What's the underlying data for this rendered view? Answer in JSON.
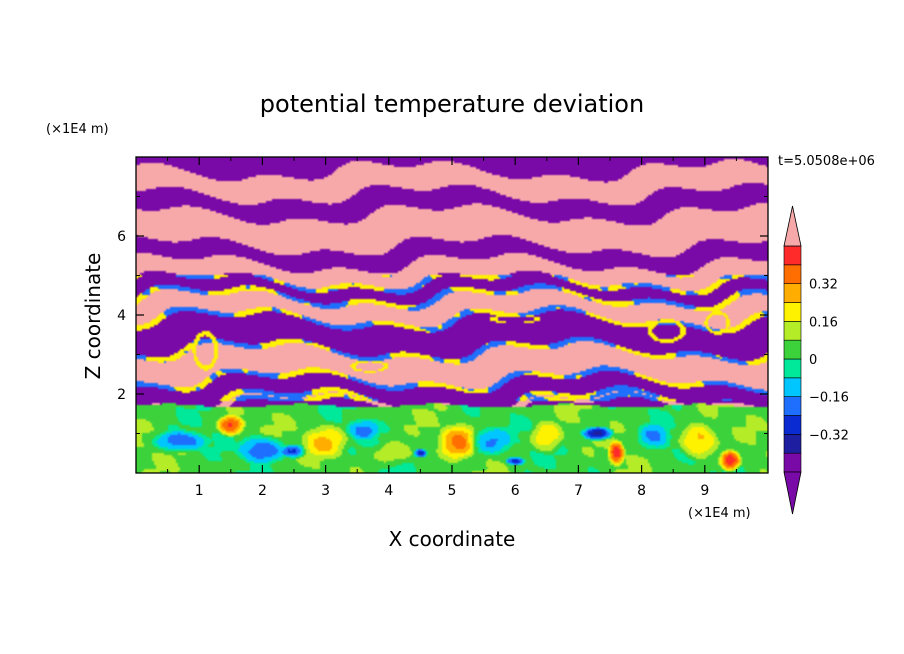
{
  "chart_data": {
    "type": "heatmap",
    "title": "potential temperature deviation",
    "xlabel": "X coordinate",
    "ylabel": "Z coordinate",
    "x_unit": "(×1E4 m)",
    "y_unit": "(×1E4 m)",
    "time_label": "t=5.0508e+06",
    "xlim": [
      0,
      10
    ],
    "ylim": [
      0,
      8
    ],
    "x_ticks": [
      {
        "value": 1,
        "label": "1"
      },
      {
        "value": 2,
        "label": "2"
      },
      {
        "value": 3,
        "label": "3"
      },
      {
        "value": 4,
        "label": "4"
      },
      {
        "value": 5,
        "label": "5"
      },
      {
        "value": 6,
        "label": "6"
      },
      {
        "value": 7,
        "label": "7"
      },
      {
        "value": 8,
        "label": "8"
      },
      {
        "value": 9,
        "label": "9"
      }
    ],
    "y_ticks": [
      {
        "value": 2,
        "label": "2"
      },
      {
        "value": 4,
        "label": "4"
      },
      {
        "value": 6,
        "label": "6"
      }
    ],
    "colorbar": {
      "levels": [
        -0.48,
        -0.4,
        -0.32,
        -0.24,
        -0.16,
        -0.08,
        0,
        0.08,
        0.16,
        0.24,
        0.32,
        0.4,
        0.48
      ],
      "colors": [
        "#7a0aa8",
        "#1e1ea0",
        "#0a2ad2",
        "#1f6fff",
        "#00c6ff",
        "#00e89a",
        "#3cd23c",
        "#b4ec28",
        "#fff200",
        "#ffae00",
        "#ff6e00",
        "#ff2a2a",
        "#f7a8a8",
        "#f7a8a8"
      ],
      "under_color": "#7a0aa8",
      "over_color": "#f7a8a8",
      "tick_labels": [
        {
          "value": 0.32,
          "label": "0.32"
        },
        {
          "value": 0.16,
          "label": "0.16"
        },
        {
          "value": 0,
          "label": "0"
        },
        {
          "value": -0.16,
          "label": "−0.16"
        },
        {
          "value": -0.32,
          "label": "−0.32"
        }
      ]
    },
    "stratified_layers": [
      {
        "z_bottom": 7.65,
        "z_top": 8.0,
        "value": -0.6
      },
      {
        "z_bottom": 7.05,
        "z_top": 7.65,
        "value": 0.6
      },
      {
        "z_bottom": 6.55,
        "z_top": 7.05,
        "value": -0.6
      },
      {
        "z_bottom": 5.75,
        "z_top": 6.55,
        "value": 0.6
      },
      {
        "z_bottom": 5.3,
        "z_top": 5.75,
        "value": -0.6
      },
      {
        "z_bottom": 4.85,
        "z_top": 5.3,
        "value": 0.6
      },
      {
        "z_bottom": 4.45,
        "z_top": 4.85,
        "value": -0.6
      },
      {
        "z_bottom": 3.9,
        "z_top": 4.45,
        "value": 0.6
      },
      {
        "z_bottom": 3.1,
        "z_top": 3.9,
        "value": -0.6
      },
      {
        "z_bottom": 2.35,
        "z_top": 3.1,
        "value": 0.6
      },
      {
        "z_bottom": 1.85,
        "z_top": 2.35,
        "value": -0.6
      },
      {
        "z_bottom": 1.7,
        "z_top": 1.85,
        "value": 0.6
      }
    ],
    "lower_layer": {
      "z_bottom": 0.0,
      "z_top": 1.7,
      "background_value": 0.04
    },
    "lower_eddies": [
      {
        "x": 0.7,
        "z": 0.8,
        "value": -0.2,
        "rx": 0.5,
        "rz": 0.3
      },
      {
        "x": 1.5,
        "z": 1.2,
        "value": 0.3,
        "rx": 0.25,
        "rz": 0.3
      },
      {
        "x": 2.0,
        "z": 0.6,
        "value": -0.2,
        "rx": 0.45,
        "rz": 0.4
      },
      {
        "x": 2.5,
        "z": 0.55,
        "value": -0.26,
        "rx": 0.2,
        "rz": 0.2
      },
      {
        "x": 3.0,
        "z": 0.8,
        "value": 0.15,
        "rx": 0.4,
        "rz": 0.5
      },
      {
        "x": 3.6,
        "z": 1.1,
        "value": -0.15,
        "rx": 0.3,
        "rz": 0.3
      },
      {
        "x": 4.1,
        "z": 0.5,
        "value": 0.1,
        "rx": 0.4,
        "rz": 0.35
      },
      {
        "x": 4.5,
        "z": 0.5,
        "value": -0.26,
        "rx": 0.12,
        "rz": 0.12
      },
      {
        "x": 5.1,
        "z": 0.8,
        "value": 0.2,
        "rx": 0.35,
        "rz": 0.5
      },
      {
        "x": 5.6,
        "z": 0.8,
        "value": -0.15,
        "rx": 0.4,
        "rz": 0.4
      },
      {
        "x": 6.0,
        "z": 0.3,
        "value": -0.26,
        "rx": 0.18,
        "rz": 0.12
      },
      {
        "x": 6.5,
        "z": 0.9,
        "value": 0.15,
        "rx": 0.3,
        "rz": 0.45
      },
      {
        "x": 7.3,
        "z": 1.0,
        "value": -0.35,
        "rx": 0.28,
        "rz": 0.2
      },
      {
        "x": 7.6,
        "z": 0.5,
        "value": 0.3,
        "rx": 0.15,
        "rz": 0.35
      },
      {
        "x": 8.2,
        "z": 0.9,
        "value": -0.15,
        "rx": 0.3,
        "rz": 0.4
      },
      {
        "x": 8.9,
        "z": 0.8,
        "value": 0.2,
        "rx": 0.35,
        "rz": 0.5
      },
      {
        "x": 9.4,
        "z": 0.3,
        "value": 0.35,
        "rx": 0.2,
        "rz": 0.3
      }
    ],
    "interface_pulses": [
      {
        "x": 1.1,
        "z": 3.1,
        "value": 0.2,
        "rx": 0.2,
        "rz": 0.5
      },
      {
        "x": 3.7,
        "z": 2.7,
        "value": 0.2,
        "rx": 0.3,
        "rz": 0.15
      },
      {
        "x": 6.0,
        "z": 3.9,
        "value": 0.2,
        "rx": 0.4,
        "rz": 0.12
      },
      {
        "x": 8.4,
        "z": 3.6,
        "value": 0.2,
        "rx": 0.3,
        "rz": 0.3
      },
      {
        "x": 9.2,
        "z": 3.8,
        "value": 0.2,
        "rx": 0.2,
        "rz": 0.3
      }
    ]
  }
}
